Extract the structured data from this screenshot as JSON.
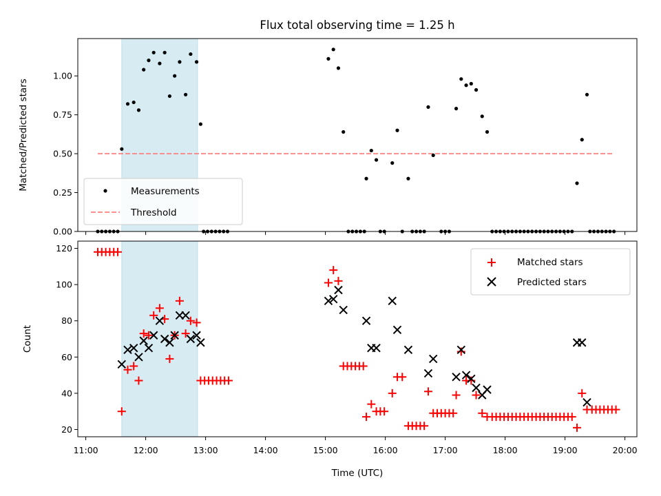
{
  "chart_data": [
    {
      "type": "scatter",
      "title": "Flux total observing time = 1.25 h",
      "xlabel": "",
      "ylabel": "Matched/Predicted stars",
      "xlim": [
        "10:52",
        "20:12"
      ],
      "ylim": [
        0,
        1.24
      ],
      "yticks": [
        0.0,
        0.25,
        0.5,
        0.75,
        1.0
      ],
      "ytick_labels": [
        "0.00",
        "0.25",
        "0.50",
        "0.75",
        "1.00"
      ],
      "grid": false,
      "legend_position": "lower-left",
      "shaded_span": [
        "11:36",
        "12:52"
      ],
      "shade_color": "#add8e6",
      "series": [
        {
          "name": "Measurements",
          "marker": "dot",
          "color": "#000000",
          "points": [
            [
              "11:12",
              0
            ],
            [
              "11:16",
              0
            ],
            [
              "11:20",
              0
            ],
            [
              "11:24",
              0
            ],
            [
              "11:28",
              0
            ],
            [
              "11:32",
              0
            ],
            [
              "11:36",
              0.53
            ],
            [
              "11:42",
              0.82
            ],
            [
              "11:48",
              0.83
            ],
            [
              "11:53",
              0.78
            ],
            [
              "11:58",
              1.04
            ],
            [
              "12:03",
              1.1
            ],
            [
              "12:08",
              1.15
            ],
            [
              "12:14",
              1.08
            ],
            [
              "12:19",
              1.15
            ],
            [
              "12:24",
              0.87
            ],
            [
              "12:29",
              1.0
            ],
            [
              "12:34",
              1.09
            ],
            [
              "12:40",
              0.88
            ],
            [
              "12:45",
              1.14
            ],
            [
              "12:51",
              1.09
            ],
            [
              "12:55",
              0.69
            ],
            [
              "12:58",
              0
            ],
            [
              "13:02",
              0
            ],
            [
              "13:06",
              0
            ],
            [
              "13:10",
              0
            ],
            [
              "13:14",
              0
            ],
            [
              "13:18",
              0
            ],
            [
              "13:22",
              0
            ],
            [
              "15:03",
              1.11
            ],
            [
              "15:08",
              1.17
            ],
            [
              "15:13",
              1.05
            ],
            [
              "15:18",
              0.64
            ],
            [
              "15:23",
              0
            ],
            [
              "15:27",
              0
            ],
            [
              "15:31",
              0
            ],
            [
              "15:35",
              0
            ],
            [
              "15:39",
              0
            ],
            [
              "15:41",
              0.34
            ],
            [
              "15:46",
              0.52
            ],
            [
              "15:51",
              0.46
            ],
            [
              "15:55",
              0
            ],
            [
              "15:59",
              0
            ],
            [
              "16:07",
              0.44
            ],
            [
              "16:12",
              0.65
            ],
            [
              "16:23",
              0.34
            ],
            [
              "16:17",
              0
            ],
            [
              "16:27",
              0
            ],
            [
              "16:31",
              0
            ],
            [
              "16:35",
              0
            ],
            [
              "16:39",
              0
            ],
            [
              "16:43",
              0.8
            ],
            [
              "16:48",
              0.49
            ],
            [
              "16:56",
              0
            ],
            [
              "17:00",
              0
            ],
            [
              "17:04",
              0
            ],
            [
              "17:11",
              0.79
            ],
            [
              "17:16",
              0.98
            ],
            [
              "17:21",
              0.94
            ],
            [
              "17:26",
              0.95
            ],
            [
              "17:31",
              0.91
            ],
            [
              "17:37",
              0.74
            ],
            [
              "17:42",
              0.64
            ],
            [
              "17:47",
              0
            ],
            [
              "17:51",
              0
            ],
            [
              "17:55",
              0
            ],
            [
              "17:59",
              0
            ],
            [
              "18:03",
              0
            ],
            [
              "18:07",
              0
            ],
            [
              "18:11",
              0
            ],
            [
              "18:15",
              0
            ],
            [
              "18:19",
              0
            ],
            [
              "18:23",
              0
            ],
            [
              "18:27",
              0
            ],
            [
              "18:31",
              0
            ],
            [
              "18:35",
              0
            ],
            [
              "18:39",
              0
            ],
            [
              "18:43",
              0
            ],
            [
              "18:47",
              0
            ],
            [
              "18:51",
              0
            ],
            [
              "18:55",
              0
            ],
            [
              "18:59",
              0
            ],
            [
              "19:03",
              0
            ],
            [
              "19:07",
              0
            ],
            [
              "19:12",
              0.31
            ],
            [
              "19:17",
              0.59
            ],
            [
              "19:22",
              0.88
            ],
            [
              "19:25",
              0
            ],
            [
              "19:29",
              0
            ],
            [
              "19:33",
              0
            ],
            [
              "19:37",
              0
            ],
            [
              "19:41",
              0
            ],
            [
              "19:45",
              0
            ],
            [
              "19:49",
              0
            ]
          ]
        },
        {
          "name": "Threshold",
          "marker": "dashed-line",
          "color": "#ff8080",
          "points": [
            [
              "11:12",
              0.5
            ],
            [
              "19:49",
              0.5
            ]
          ]
        }
      ]
    },
    {
      "type": "scatter",
      "title": "",
      "xlabel": "Time (UTC)",
      "ylabel": "Count",
      "xlim": [
        "10:52",
        "20:12"
      ],
      "ylim": [
        16,
        124
      ],
      "yticks": [
        20,
        40,
        60,
        80,
        100,
        120
      ],
      "ytick_labels": [
        "20",
        "40",
        "60",
        "80",
        "100",
        "120"
      ],
      "xticks": [
        "11:00",
        "12:00",
        "13:00",
        "14:00",
        "15:00",
        "16:00",
        "17:00",
        "18:00",
        "19:00",
        "20:00"
      ],
      "grid": false,
      "legend_position": "upper-right",
      "shaded_span": [
        "11:36",
        "12:52"
      ],
      "series": [
        {
          "name": "Matched stars",
          "marker": "plus",
          "color": "#ff0000",
          "points": [
            [
              "11:12",
              118
            ],
            [
              "11:16",
              118
            ],
            [
              "11:20",
              118
            ],
            [
              "11:24",
              118
            ],
            [
              "11:28",
              118
            ],
            [
              "11:32",
              118
            ],
            [
              "11:36",
              30
            ],
            [
              "11:42",
              53
            ],
            [
              "11:48",
              55
            ],
            [
              "11:53",
              47
            ],
            [
              "11:58",
              73
            ],
            [
              "12:03",
              72
            ],
            [
              "12:08",
              83
            ],
            [
              "12:14",
              87
            ],
            [
              "12:19",
              81
            ],
            [
              "12:24",
              59
            ],
            [
              "12:29",
              72
            ],
            [
              "12:34",
              91
            ],
            [
              "12:40",
              73
            ],
            [
              "12:45",
              80
            ],
            [
              "12:51",
              79
            ],
            [
              "12:55",
              47
            ],
            [
              "12:59",
              47
            ],
            [
              "13:03",
              47
            ],
            [
              "13:07",
              47
            ],
            [
              "13:11",
              47
            ],
            [
              "13:15",
              47
            ],
            [
              "13:19",
              47
            ],
            [
              "13:23",
              47
            ],
            [
              "15:03",
              101
            ],
            [
              "15:08",
              108
            ],
            [
              "15:13",
              102
            ],
            [
              "15:18",
              55
            ],
            [
              "15:22",
              55
            ],
            [
              "15:26",
              55
            ],
            [
              "15:30",
              55
            ],
            [
              "15:34",
              55
            ],
            [
              "15:38",
              55
            ],
            [
              "15:41",
              27
            ],
            [
              "15:46",
              34
            ],
            [
              "15:51",
              30
            ],
            [
              "15:55",
              30
            ],
            [
              "15:59",
              30
            ],
            [
              "16:07",
              40
            ],
            [
              "16:12",
              49
            ],
            [
              "16:17",
              49
            ],
            [
              "16:23",
              22
            ],
            [
              "16:27",
              22
            ],
            [
              "16:31",
              22
            ],
            [
              "16:35",
              22
            ],
            [
              "16:39",
              22
            ],
            [
              "16:43",
              41
            ],
            [
              "16:48",
              29
            ],
            [
              "16:52",
              29
            ],
            [
              "16:56",
              29
            ],
            [
              "17:00",
              29
            ],
            [
              "17:04",
              29
            ],
            [
              "17:08",
              29
            ],
            [
              "17:11",
              39
            ],
            [
              "17:16",
              63
            ],
            [
              "17:21",
              47
            ],
            [
              "17:26",
              47
            ],
            [
              "17:31",
              39
            ],
            [
              "17:37",
              29
            ],
            [
              "17:42",
              27
            ],
            [
              "17:47",
              27
            ],
            [
              "17:51",
              27
            ],
            [
              "17:55",
              27
            ],
            [
              "17:59",
              27
            ],
            [
              "18:03",
              27
            ],
            [
              "18:07",
              27
            ],
            [
              "18:11",
              27
            ],
            [
              "18:15",
              27
            ],
            [
              "18:19",
              27
            ],
            [
              "18:23",
              27
            ],
            [
              "18:27",
              27
            ],
            [
              "18:31",
              27
            ],
            [
              "18:35",
              27
            ],
            [
              "18:39",
              27
            ],
            [
              "18:43",
              27
            ],
            [
              "18:47",
              27
            ],
            [
              "18:51",
              27
            ],
            [
              "18:55",
              27
            ],
            [
              "18:59",
              27
            ],
            [
              "19:03",
              27
            ],
            [
              "19:07",
              27
            ],
            [
              "19:12",
              21
            ],
            [
              "19:17",
              40
            ],
            [
              "19:22",
              31
            ],
            [
              "19:27",
              31
            ],
            [
              "19:31",
              31
            ],
            [
              "19:35",
              31
            ],
            [
              "19:39",
              31
            ],
            [
              "19:43",
              31
            ],
            [
              "19:47",
              31
            ],
            [
              "19:51",
              31
            ]
          ]
        },
        {
          "name": "Predicted stars",
          "marker": "x",
          "color": "#000000",
          "points": [
            [
              "11:36",
              56
            ],
            [
              "11:42",
              64
            ],
            [
              "11:48",
              65
            ],
            [
              "11:53",
              60
            ],
            [
              "11:58",
              69
            ],
            [
              "12:03",
              65
            ],
            [
              "12:08",
              72
            ],
            [
              "12:14",
              80
            ],
            [
              "12:19",
              70
            ],
            [
              "12:24",
              68
            ],
            [
              "12:29",
              72
            ],
            [
              "12:34",
              83
            ],
            [
              "12:40",
              83
            ],
            [
              "12:45",
              70
            ],
            [
              "12:51",
              72
            ],
            [
              "12:55",
              68
            ],
            [
              "15:03",
              91
            ],
            [
              "15:08",
              92
            ],
            [
              "15:13",
              97
            ],
            [
              "15:18",
              86
            ],
            [
              "15:41",
              80
            ],
            [
              "15:46",
              65
            ],
            [
              "15:51",
              65
            ],
            [
              "16:07",
              91
            ],
            [
              "16:12",
              75
            ],
            [
              "16:23",
              64
            ],
            [
              "16:43",
              51
            ],
            [
              "16:48",
              59
            ],
            [
              "17:11",
              49
            ],
            [
              "17:16",
              64
            ],
            [
              "17:21",
              50
            ],
            [
              "17:26",
              48
            ],
            [
              "17:31",
              43
            ],
            [
              "17:37",
              39
            ],
            [
              "17:42",
              42
            ],
            [
              "19:12",
              68
            ],
            [
              "19:17",
              68
            ],
            [
              "19:22",
              35
            ]
          ]
        }
      ]
    }
  ]
}
